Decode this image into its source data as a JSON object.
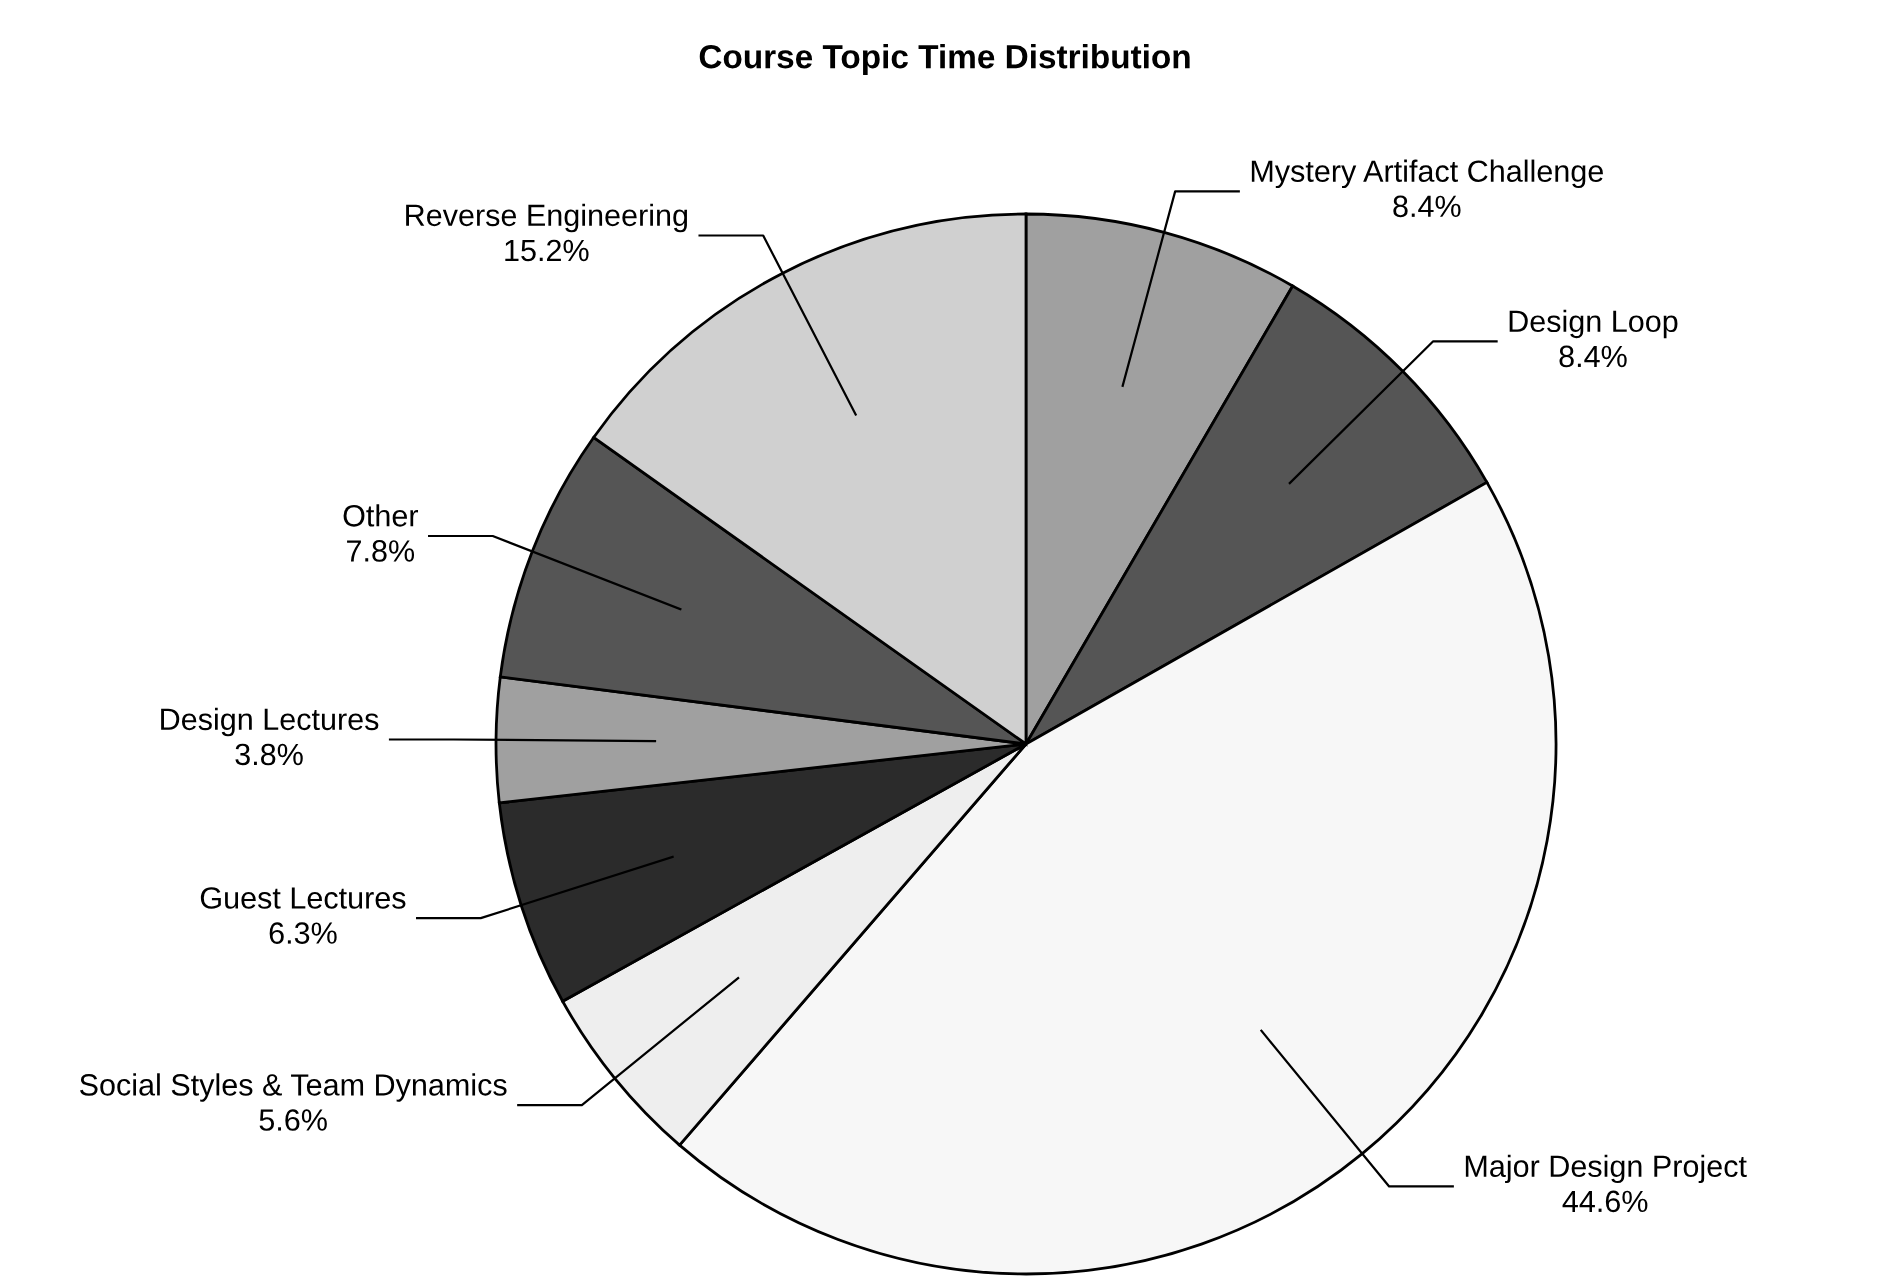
{
  "chart_data": {
    "type": "pie",
    "title": "Course Topic Time Distribution",
    "categories": [
      "Mystery Artifact Challenge",
      "Design Loop",
      "Major Design Project",
      "Social Styles & Team Dynamics",
      "Guest Lectures",
      "Design Lectures",
      "Other",
      "Reverse Engineering"
    ],
    "values": [
      8.4,
      8.4,
      44.6,
      5.6,
      6.3,
      3.8,
      7.8,
      15.2
    ],
    "colors": [
      "#a0a0a0",
      "#555555",
      "#f7f7f7",
      "#eeeeee",
      "#2b2b2b",
      "#a0a0a0",
      "#555555",
      "#d0d0d0"
    ],
    "value_labels": [
      "8.4%",
      "8.4%",
      "44.6%",
      "5.6%",
      "6.3%",
      "3.8%",
      "7.8%",
      "15.2%"
    ]
  }
}
